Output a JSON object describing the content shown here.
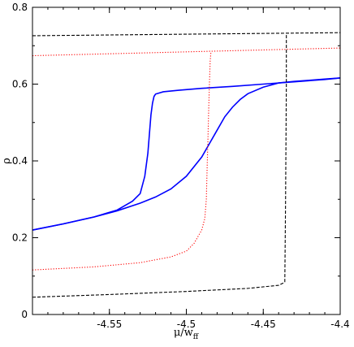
{
  "chart_data": {
    "type": "line",
    "title": "",
    "xlabel": "μ/w",
    "xlabel_sub": "ff",
    "ylabel": "ρ",
    "xlim": [
      -4.6,
      -4.4
    ],
    "ylim": [
      0,
      0.8
    ],
    "xticks": [
      -4.55,
      -4.5,
      -4.45,
      -4.4
    ],
    "xtick_labels": [
      "-4.55",
      "-4.5",
      "-4.45",
      "-4.4"
    ],
    "yticks": [
      0,
      0.2,
      0.4,
      0.6,
      0.8
    ],
    "ytick_labels": [
      "0",
      "0.2",
      "0.4",
      "0.6",
      "0.8"
    ],
    "grid": false,
    "series": [
      {
        "color": "#0000ff",
        "style": "solid",
        "x": [
          -4.6,
          -4.58,
          -4.56,
          -4.545,
          -4.535,
          -4.53,
          -4.527,
          -4.525,
          -4.524,
          -4.523,
          -4.522,
          -4.521,
          -4.52,
          -4.515,
          -4.505,
          -4.49,
          -4.47,
          -4.45,
          -4.43,
          -4.41,
          -4.4
        ],
        "y": [
          0.22,
          0.236,
          0.254,
          0.272,
          0.295,
          0.315,
          0.36,
          0.42,
          0.47,
          0.52,
          0.55,
          0.568,
          0.574,
          0.58,
          0.584,
          0.589,
          0.594,
          0.6,
          0.606,
          0.612,
          0.616
        ]
      },
      {
        "color": "#0000ff",
        "style": "solid",
        "x": [
          -4.6,
          -4.58,
          -4.56,
          -4.545,
          -4.53,
          -4.52,
          -4.51,
          -4.5,
          -4.49,
          -4.485,
          -4.48,
          -4.475,
          -4.47,
          -4.465,
          -4.46,
          -4.45,
          -4.44,
          -4.43,
          -4.42,
          -4.41,
          -4.4
        ],
        "y": [
          0.22,
          0.236,
          0.254,
          0.27,
          0.29,
          0.306,
          0.327,
          0.36,
          0.41,
          0.445,
          0.48,
          0.515,
          0.54,
          0.56,
          0.575,
          0.592,
          0.603,
          0.607,
          0.61,
          0.613,
          0.616
        ]
      },
      {
        "color": "#ff0000",
        "style": "dotted",
        "x": [
          -4.6,
          -4.56,
          -4.53,
          -4.51,
          -4.5,
          -4.495,
          -4.49,
          -4.488,
          -4.487,
          -4.4865,
          -4.486,
          -4.4855,
          -4.485,
          -4.4845,
          -4.484
        ],
        "y": [
          0.116,
          0.124,
          0.135,
          0.15,
          0.165,
          0.185,
          0.22,
          0.25,
          0.3,
          0.38,
          0.45,
          0.53,
          0.6,
          0.66,
          0.685
        ]
      },
      {
        "color": "#ff0000",
        "style": "dotted",
        "x": [
          -4.6,
          -4.55,
          -4.5,
          -4.45,
          -4.4
        ],
        "y": [
          0.674,
          0.679,
          0.684,
          0.689,
          0.694
        ]
      },
      {
        "color": "#000000",
        "style": "dashed",
        "x": [
          -4.6,
          -4.55,
          -4.5,
          -4.46,
          -4.44,
          -4.437,
          -4.436,
          -4.4355,
          -4.435,
          -4.435
        ],
        "y": [
          0.045,
          0.052,
          0.06,
          0.068,
          0.076,
          0.082,
          0.085,
          0.3,
          0.6,
          0.73
        ]
      },
      {
        "color": "#000000",
        "style": "dashed",
        "x": [
          -4.6,
          -4.55,
          -4.5,
          -4.45,
          -4.4
        ],
        "y": [
          0.726,
          0.728,
          0.73,
          0.732,
          0.734
        ]
      }
    ]
  }
}
